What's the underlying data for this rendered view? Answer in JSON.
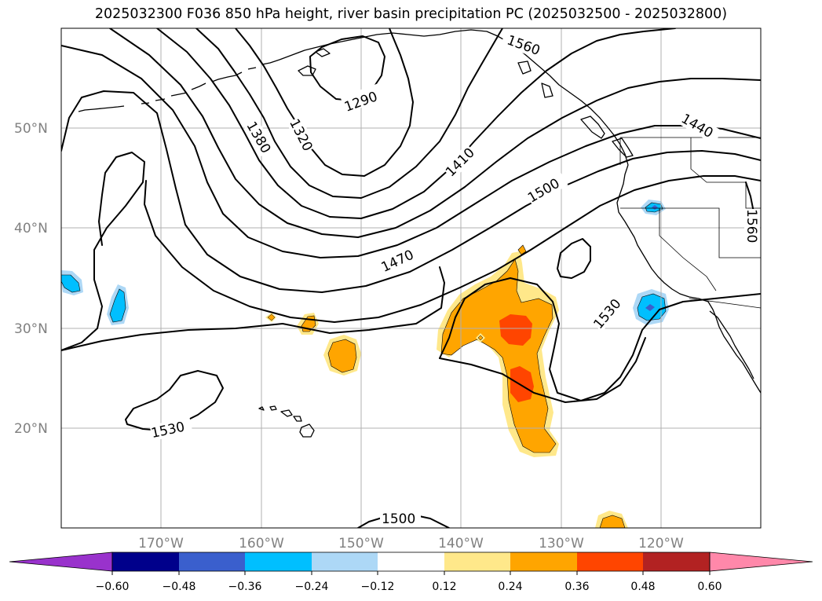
{
  "title": "2025032300 F036 850 hPa height, river basin precipitation PC (2025032500 - 2025032800)",
  "map": {
    "projection": "cylindrical (plate carree)",
    "extent": {
      "lon_min": -180,
      "lon_max": -110,
      "lat_min": 10,
      "lat_max": 60
    },
    "gridlines": true,
    "lat_labels": [
      "20°N",
      "30°N",
      "40°N",
      "50°N"
    ],
    "lon_labels": [
      "170°W",
      "160°W",
      "150°W",
      "140°W",
      "130°W",
      "120°W"
    ],
    "contour_variable": "850 hPa height (m)",
    "contour_labels": [
      "1290",
      "1320",
      "1380",
      "1410",
      "1440",
      "1470",
      "1500",
      "1500",
      "1530",
      "1530",
      "1560",
      "1560"
    ],
    "shading_variable": "river basin precipitation PC",
    "shading_features": [
      {
        "sign": "positive",
        "max_level": 0.36,
        "location": "near 24-34N, 135-140W"
      },
      {
        "sign": "negative",
        "min_level": -0.36,
        "location": "near 31-32N, 120W"
      },
      {
        "sign": "negative",
        "min_level": -0.36,
        "location": "near 40N, 121W"
      },
      {
        "sign": "negative",
        "min_level": -0.36,
        "location": "near 34N, 178W"
      },
      {
        "sign": "negative",
        "min_level": -0.36,
        "location": "near 32N, 175W"
      },
      {
        "sign": "positive",
        "min_level": 0.12,
        "location": "near 28N, 152W"
      },
      {
        "sign": "positive",
        "min_level": 0.12,
        "location": "near 30N, 155W"
      },
      {
        "sign": "positive",
        "min_level": 0.12,
        "location": "near 10N, 125W"
      }
    ]
  },
  "colorbar": {
    "ticks": [
      "−0.60",
      "−0.48",
      "−0.36",
      "−0.24",
      "−0.12",
      "0.12",
      "0.24",
      "0.36",
      "0.48",
      "0.60"
    ],
    "colors": [
      "#9932cc",
      "#00008b",
      "#3a5fcd",
      "#00bfff",
      "#add8f6",
      "#ffffff",
      "#ffe88a",
      "#ffa500",
      "#ff4500",
      "#b22222",
      "#ff88aa"
    ],
    "extend": "both"
  }
}
